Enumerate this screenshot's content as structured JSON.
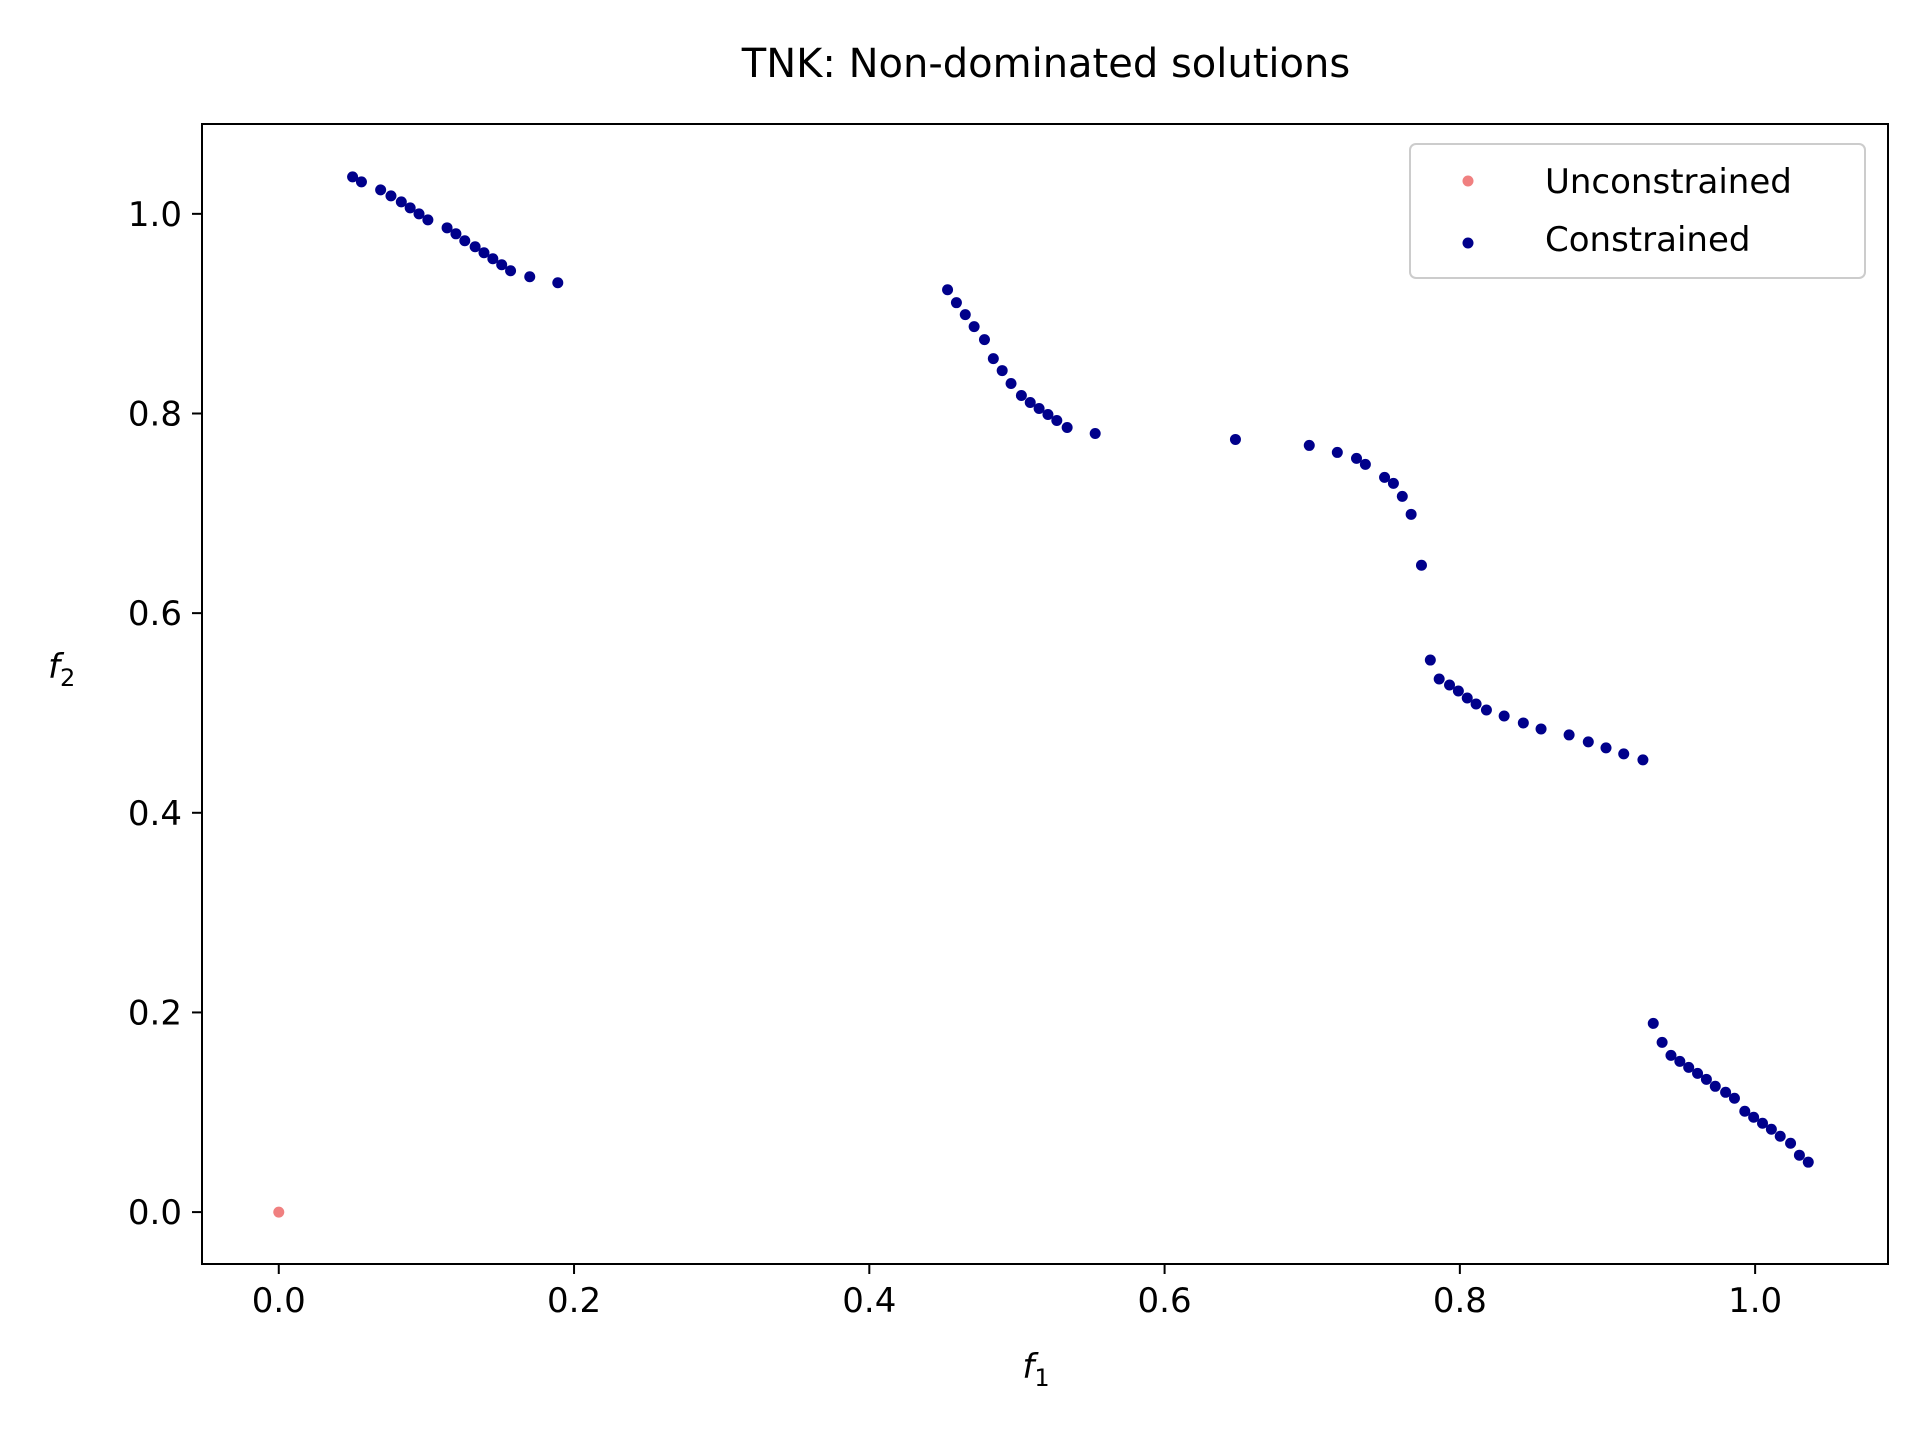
{
  "chart_data": {
    "type": "scatter",
    "title": "TNK: Non-dominated solutions",
    "xlabel": "f",
    "xlabel_sub": "1",
    "ylabel": "f",
    "ylabel_sub": "2",
    "xlim": [
      -0.052,
      1.09
    ],
    "ylim": [
      -0.052,
      1.09
    ],
    "xticks": [
      "0.0",
      "0.2",
      "0.4",
      "0.6",
      "0.8",
      "1.0"
    ],
    "yticks": [
      "0.0",
      "0.2",
      "0.4",
      "0.6",
      "0.8",
      "1.0"
    ],
    "xtick_values": [
      0.0,
      0.2,
      0.4,
      0.6,
      0.8,
      1.0
    ],
    "ytick_values": [
      0.0,
      0.2,
      0.4,
      0.6,
      0.8,
      1.0
    ],
    "grid": false,
    "legend_position": "top-right",
    "series": [
      {
        "name": "Unconstrained",
        "color": "#f08080",
        "points": [
          [
            0.0,
            0.0
          ]
        ]
      },
      {
        "name": "Constrained",
        "color": "#00008b",
        "points": [
          [
            0.05,
            1.037
          ],
          [
            0.056,
            1.032
          ],
          [
            0.069,
            1.024
          ],
          [
            0.076,
            1.018
          ],
          [
            0.083,
            1.012
          ],
          [
            0.089,
            1.006
          ],
          [
            0.095,
            1.0
          ],
          [
            0.101,
            0.994
          ],
          [
            0.114,
            0.986
          ],
          [
            0.12,
            0.98
          ],
          [
            0.126,
            0.973
          ],
          [
            0.133,
            0.967
          ],
          [
            0.139,
            0.961
          ],
          [
            0.145,
            0.955
          ],
          [
            0.151,
            0.949
          ],
          [
            0.157,
            0.943
          ],
          [
            0.17,
            0.937
          ],
          [
            0.189,
            0.931
          ],
          [
            0.453,
            0.924
          ],
          [
            0.459,
            0.911
          ],
          [
            0.465,
            0.899
          ],
          [
            0.471,
            0.887
          ],
          [
            0.478,
            0.874
          ],
          [
            0.484,
            0.855
          ],
          [
            0.49,
            0.843
          ],
          [
            0.496,
            0.83
          ],
          [
            0.503,
            0.818
          ],
          [
            0.509,
            0.811
          ],
          [
            0.515,
            0.805
          ],
          [
            0.521,
            0.799
          ],
          [
            0.527,
            0.793
          ],
          [
            0.534,
            0.786
          ],
          [
            0.553,
            0.78
          ],
          [
            0.648,
            0.774
          ],
          [
            0.698,
            0.768
          ],
          [
            0.717,
            0.761
          ],
          [
            0.73,
            0.755
          ],
          [
            0.736,
            0.749
          ],
          [
            0.749,
            0.736
          ],
          [
            0.755,
            0.73
          ],
          [
            0.761,
            0.717
          ],
          [
            0.767,
            0.699
          ],
          [
            0.774,
            0.648
          ],
          [
            0.78,
            0.553
          ],
          [
            0.786,
            0.534
          ],
          [
            0.793,
            0.528
          ],
          [
            0.799,
            0.522
          ],
          [
            0.805,
            0.515
          ],
          [
            0.811,
            0.509
          ],
          [
            0.818,
            0.503
          ],
          [
            0.83,
            0.497
          ],
          [
            0.843,
            0.49
          ],
          [
            0.855,
            0.484
          ],
          [
            0.874,
            0.478
          ],
          [
            0.887,
            0.471
          ],
          [
            0.899,
            0.465
          ],
          [
            0.911,
            0.459
          ],
          [
            0.924,
            0.453
          ],
          [
            0.931,
            0.189
          ],
          [
            0.937,
            0.17
          ],
          [
            0.943,
            0.157
          ],
          [
            0.949,
            0.151
          ],
          [
            0.955,
            0.145
          ],
          [
            0.961,
            0.139
          ],
          [
            0.967,
            0.133
          ],
          [
            0.973,
            0.126
          ],
          [
            0.98,
            0.12
          ],
          [
            0.986,
            0.114
          ],
          [
            0.993,
            0.101
          ],
          [
            0.999,
            0.095
          ],
          [
            1.005,
            0.089
          ],
          [
            1.011,
            0.083
          ],
          [
            1.017,
            0.076
          ],
          [
            1.024,
            0.069
          ],
          [
            1.03,
            0.057
          ],
          [
            1.036,
            0.05
          ]
        ]
      }
    ]
  }
}
